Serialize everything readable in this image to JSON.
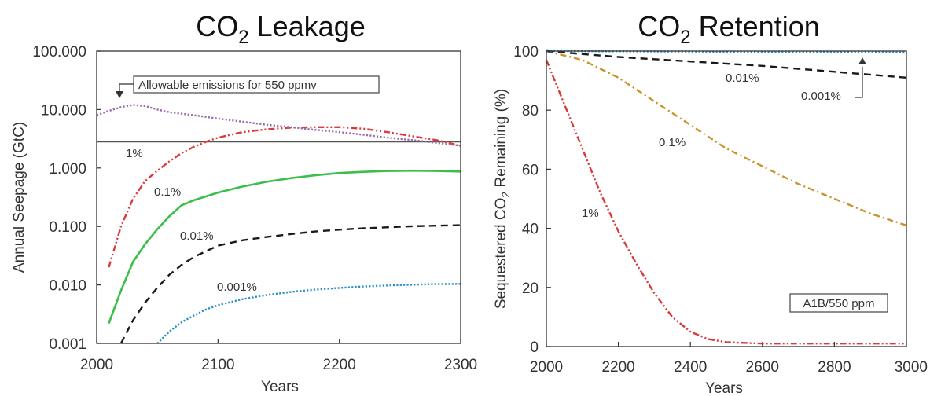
{
  "chart_data": [
    {
      "type": "line",
      "title_main": "CO",
      "title_sub": "2",
      "title_rest": " Leakage",
      "xlabel": "Years",
      "ylabel": "Annual Seepage (GtC)",
      "y_scale": "log",
      "xlim": [
        2000,
        2300
      ],
      "ylim": [
        0.001,
        100
      ],
      "x_ticks": [
        2000,
        2100,
        2200,
        2300
      ],
      "y_ticks": [
        0.001,
        0.01,
        0.1,
        1,
        10,
        100
      ],
      "y_tick_labels": [
        "0.001",
        "0.010",
        "0.100",
        "1.000",
        "10.000",
        "100.000"
      ],
      "reference_line": {
        "value": 2.8,
        "label": "Allowable emissions for 550 ppmv"
      },
      "series": [
        {
          "name": "1%",
          "color": "#d93a3a",
          "style": "dashdotdot",
          "x": [
            2010,
            2020,
            2030,
            2040,
            2050,
            2060,
            2070,
            2080,
            2090,
            2100,
            2120,
            2140,
            2160,
            2180,
            2200,
            2220,
            2240,
            2260,
            2280,
            2300
          ],
          "y": [
            0.02,
            0.1,
            0.3,
            0.6,
            0.9,
            1.3,
            1.8,
            2.3,
            2.8,
            3.3,
            4.1,
            4.6,
            4.9,
            5.0,
            5.0,
            4.7,
            4.1,
            3.5,
            3.0,
            2.4
          ]
        },
        {
          "name": "0.1%",
          "color": "#3cbf4a",
          "style": "solid",
          "x": [
            2010,
            2020,
            2030,
            2040,
            2050,
            2060,
            2070,
            2080,
            2100,
            2120,
            2140,
            2160,
            2180,
            2200,
            2220,
            2240,
            2260,
            2280,
            2300
          ],
          "y": [
            0.0022,
            0.008,
            0.025,
            0.05,
            0.09,
            0.15,
            0.23,
            0.28,
            0.38,
            0.48,
            0.58,
            0.67,
            0.75,
            0.82,
            0.86,
            0.89,
            0.9,
            0.89,
            0.87
          ]
        },
        {
          "name": "0.01%",
          "color": "#1a1a1a",
          "style": "dashed",
          "x": [
            2020,
            2030,
            2040,
            2050,
            2060,
            2070,
            2080,
            2100,
            2120,
            2140,
            2160,
            2180,
            2200,
            2220,
            2240,
            2260,
            2280,
            2300
          ],
          "y": [
            0.001,
            0.0025,
            0.005,
            0.009,
            0.015,
            0.022,
            0.03,
            0.047,
            0.058,
            0.066,
            0.074,
            0.082,
            0.088,
            0.093,
            0.097,
            0.101,
            0.103,
            0.105
          ]
        },
        {
          "name": "0.001%",
          "color": "#2a8fc7",
          "style": "dotted",
          "x": [
            2050,
            2060,
            2070,
            2080,
            2090,
            2100,
            2120,
            2140,
            2160,
            2180,
            2200,
            2220,
            2240,
            2260,
            2280,
            2300
          ],
          "y": [
            0.001,
            0.0016,
            0.0023,
            0.003,
            0.0038,
            0.0045,
            0.0057,
            0.0067,
            0.0076,
            0.0083,
            0.0089,
            0.0094,
            0.0098,
            0.0101,
            0.0103,
            0.0104
          ]
        },
        {
          "name": "Allowable emissions for 550 ppmv",
          "color": "#9b6aa8",
          "style": "dotted",
          "x": [
            2000,
            2010,
            2020,
            2030,
            2040,
            2050,
            2060,
            2080,
            2100,
            2120,
            2140,
            2160,
            2180,
            2200,
            2220,
            2240,
            2260,
            2280,
            2300
          ],
          "y": [
            8,
            9.5,
            11,
            12,
            11.5,
            10,
            9,
            8,
            7,
            6.2,
            5.5,
            5,
            4.5,
            4.1,
            3.7,
            3.3,
            3.0,
            2.7,
            2.4
          ]
        }
      ],
      "labels": [
        "1%",
        "0.1%",
        "0.01%",
        "0.001%"
      ]
    },
    {
      "type": "line",
      "title_main": "CO",
      "title_sub": "2",
      "title_rest": " Retention",
      "xlabel": "Years",
      "ylabel_main": "Sequestered CO",
      "ylabel_sub": "2",
      "ylabel_rest": " Remaining (%)",
      "xlim": [
        2000,
        3000
      ],
      "ylim": [
        0,
        100
      ],
      "x_ticks": [
        2000,
        2200,
        2400,
        2600,
        2800,
        3000
      ],
      "x_tick_labels": [
        "2000",
        "2200",
        "2400",
        "2600",
        "2800",
        "3000"
      ],
      "y_ticks": [
        0,
        20,
        40,
        60,
        80,
        100
      ],
      "legend_box": "A1B/550 ppm",
      "series": [
        {
          "name": "1%",
          "color": "#d93a3a",
          "style": "dashdotdot",
          "x": [
            2000,
            2050,
            2100,
            2150,
            2200,
            2250,
            2300,
            2350,
            2400,
            2450,
            2500,
            2600,
            2700,
            2800,
            2900,
            3000
          ],
          "y": [
            97,
            82,
            67,
            52,
            39,
            28,
            18,
            10,
            5,
            2.5,
            1.5,
            1,
            1,
            1,
            1,
            1
          ]
        },
        {
          "name": "0.1%",
          "color": "#c9952a",
          "style": "dashdot",
          "x": [
            2000,
            2100,
            2200,
            2300,
            2400,
            2500,
            2600,
            2700,
            2800,
            2900,
            3000
          ],
          "y": [
            100,
            97,
            91,
            83,
            75,
            67,
            61,
            55,
            50,
            45,
            41
          ]
        },
        {
          "name": "0.01%",
          "color": "#1a1a1a",
          "style": "dashed",
          "x": [
            2000,
            2200,
            2400,
            2600,
            2800,
            3000
          ],
          "y": [
            100,
            98,
            96.5,
            95,
            93,
            91
          ]
        },
        {
          "name": "0.001%",
          "color": "#2a8fc7",
          "style": "dotted",
          "x": [
            2000,
            2500,
            3000
          ],
          "y": [
            100,
            99.8,
            99.5
          ]
        }
      ],
      "labels": [
        "1%",
        "0.1%",
        "0.01%",
        "0.001%"
      ]
    }
  ]
}
